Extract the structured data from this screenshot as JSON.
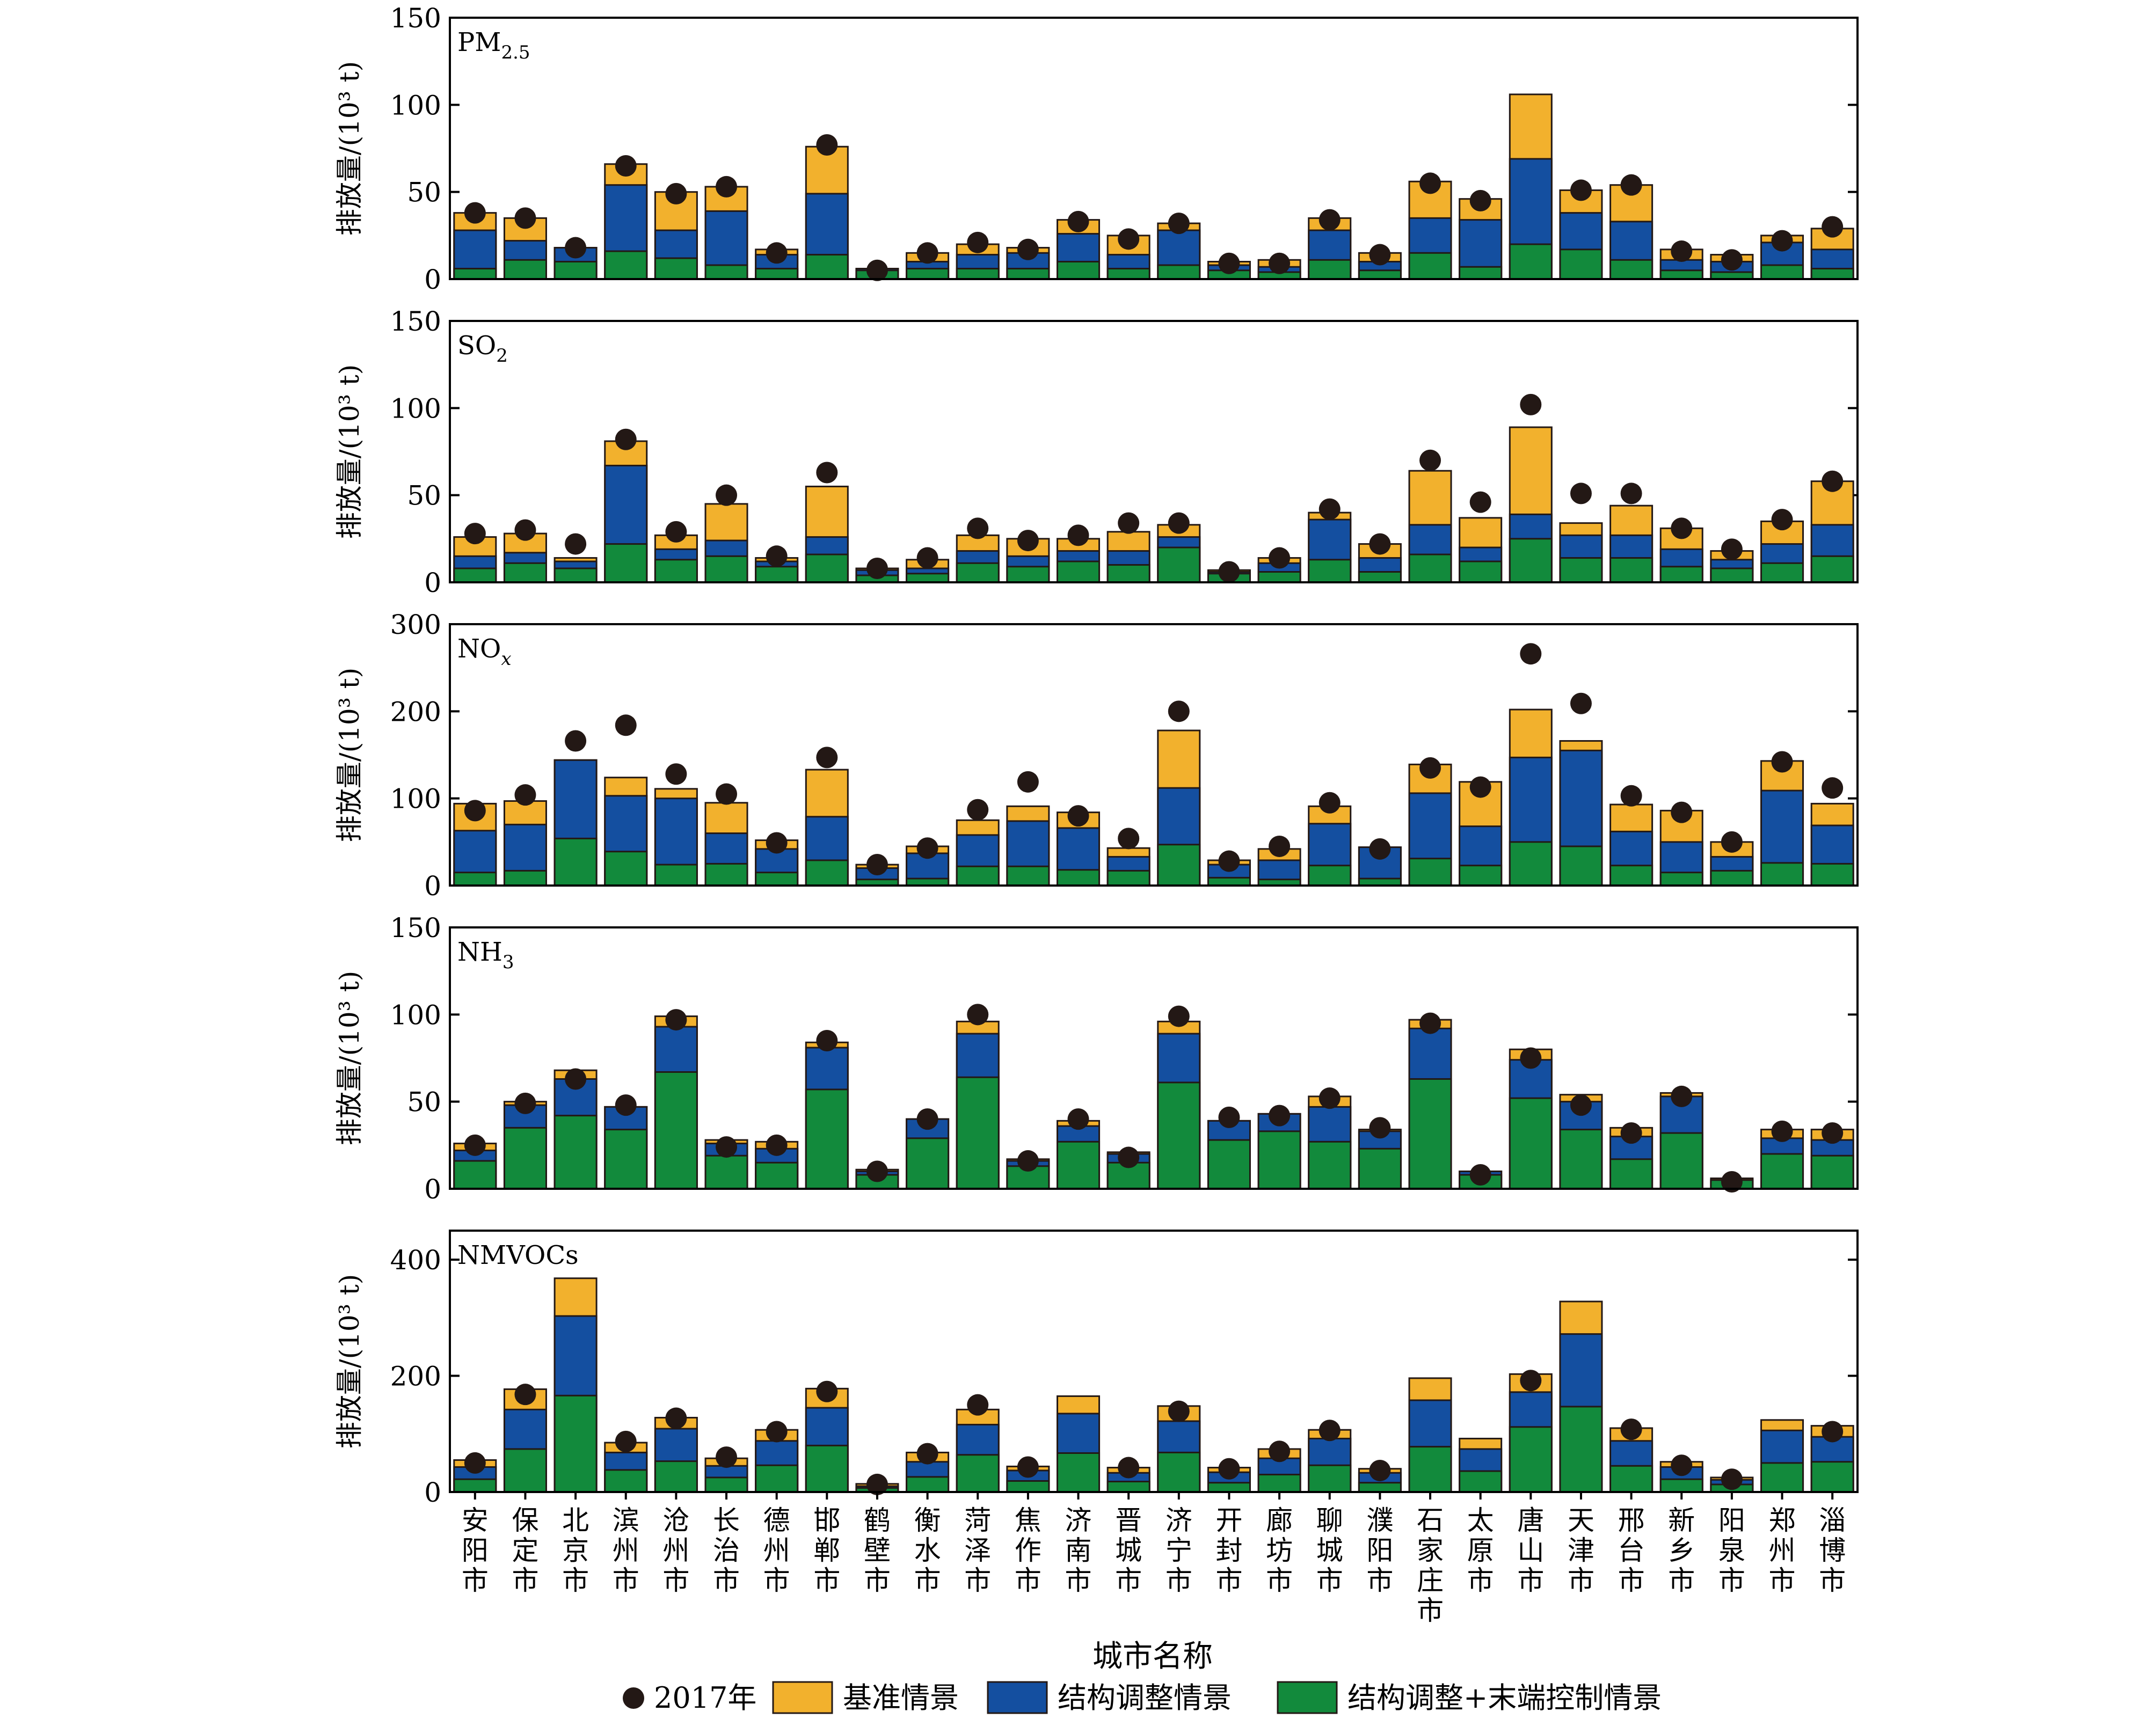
{
  "xlabel": "城市名称",
  "ylabel": "排放量/(10³ t)",
  "legend": {
    "placement": "bottom",
    "items": [
      {
        "key": "y2017",
        "label": "2017年",
        "shape": "circle",
        "color": "#231815"
      },
      {
        "key": "baseline",
        "label": "基准情景",
        "shape": "rect",
        "color": "#F2B12D"
      },
      {
        "key": "structural",
        "label": "结构调整情景",
        "shape": "rect",
        "color": "#144FA0"
      },
      {
        "key": "structural_end",
        "label": "结构调整+末端控制情景",
        "shape": "rect",
        "color": "#128A3C"
      }
    ]
  },
  "chart_data": {
    "type": "bar",
    "categories": [
      "安阳市",
      "保定市",
      "北京市",
      "滨州市",
      "沧州市",
      "长治市",
      "德州市",
      "邯郸市",
      "鹤壁市",
      "衡水市",
      "菏泽市",
      "焦作市",
      "济南市",
      "晋城市",
      "济宁市",
      "开封市",
      "廊坊市",
      "聊城市",
      "濮阳市",
      "石家庄市",
      "太原市",
      "唐山市",
      "天津市",
      "邢台市",
      "新乡市",
      "阳泉市",
      "郑州市",
      "淄博市"
    ],
    "panels": [
      {
        "title_main": "PM",
        "title_sub": "2.5",
        "title_italic": false,
        "ylim": [
          0,
          150
        ],
        "yticks": [
          0,
          50,
          100,
          150
        ],
        "series": {
          "baseline": [
            38,
            35,
            18,
            66,
            50,
            53,
            17,
            76,
            6,
            15,
            20,
            18,
            34,
            25,
            32,
            10,
            11,
            35,
            15,
            56,
            46,
            106,
            51,
            54,
            17,
            14,
            25,
            29
          ],
          "structural": [
            28,
            22,
            18,
            54,
            28,
            39,
            14,
            49,
            6,
            10,
            14,
            15,
            26,
            14,
            28,
            8,
            7,
            28,
            10,
            35,
            34,
            69,
            38,
            33,
            11,
            10,
            21,
            17
          ],
          "structural_end": [
            6,
            11,
            10,
            16,
            12,
            8,
            6,
            14,
            5,
            6,
            6,
            6,
            10,
            6,
            8,
            5,
            4,
            11,
            5,
            15,
            7,
            20,
            17,
            11,
            5,
            4,
            8,
            6
          ],
          "y2017": [
            38,
            35,
            18,
            65,
            49,
            53,
            15,
            77,
            5,
            15,
            21,
            17,
            33,
            23,
            32,
            9,
            9,
            34,
            14,
            55,
            45,
            null,
            51,
            54,
            16,
            11,
            22,
            30
          ]
        }
      },
      {
        "title_main": "SO",
        "title_sub": "2",
        "title_italic": false,
        "ylim": [
          0,
          150
        ],
        "yticks": [
          0,
          50,
          100,
          150
        ],
        "series": {
          "baseline": [
            26,
            28,
            14,
            81,
            27,
            45,
            14,
            55,
            8,
            13,
            27,
            25,
            25,
            29,
            33,
            7,
            14,
            40,
            22,
            64,
            37,
            89,
            34,
            44,
            31,
            18,
            35,
            58
          ],
          "structural": [
            15,
            17,
            12,
            67,
            19,
            24,
            12,
            26,
            7,
            8,
            18,
            15,
            18,
            18,
            26,
            6,
            11,
            36,
            14,
            33,
            20,
            39,
            27,
            27,
            19,
            13,
            22,
            33
          ],
          "structural_end": [
            8,
            11,
            8,
            22,
            13,
            15,
            9,
            16,
            4,
            5,
            11,
            9,
            12,
            10,
            20,
            5,
            6,
            13,
            6,
            16,
            12,
            25,
            14,
            14,
            9,
            8,
            11,
            15
          ],
          "y2017": [
            28,
            30,
            22,
            82,
            29,
            50,
            15,
            63,
            8,
            14,
            31,
            24,
            27,
            34,
            34,
            6,
            14,
            42,
            22,
            70,
            46,
            102,
            51,
            51,
            31,
            19,
            36,
            58
          ]
        }
      },
      {
        "title_main": "NO",
        "title_sub": "x",
        "title_italic": true,
        "ylim": [
          0,
          300
        ],
        "yticks": [
          0,
          100,
          200,
          300
        ],
        "series": {
          "baseline": [
            94,
            97,
            144,
            124,
            111,
            95,
            52,
            133,
            24,
            45,
            75,
            91,
            84,
            43,
            178,
            29,
            42,
            91,
            44,
            139,
            119,
            202,
            166,
            93,
            86,
            50,
            143,
            94
          ],
          "structural": [
            63,
            70,
            144,
            103,
            100,
            60,
            42,
            79,
            20,
            37,
            58,
            74,
            66,
            33,
            112,
            24,
            29,
            71,
            44,
            106,
            68,
            147,
            155,
            62,
            50,
            33,
            109,
            69
          ],
          "structural_end": [
            15,
            17,
            54,
            39,
            24,
            25,
            15,
            29,
            7,
            8,
            22,
            22,
            18,
            17,
            47,
            9,
            7,
            23,
            8,
            31,
            23,
            50,
            45,
            23,
            15,
            17,
            26,
            25
          ],
          "y2017": [
            86,
            104,
            166,
            184,
            128,
            105,
            49,
            147,
            24,
            43,
            87,
            119,
            80,
            54,
            200,
            28,
            45,
            95,
            42,
            135,
            113,
            266,
            209,
            103,
            84,
            50,
            142,
            112
          ]
        }
      },
      {
        "title_main": "NH",
        "title_sub": "3",
        "title_italic": false,
        "ylim": [
          0,
          150
        ],
        "yticks": [
          0,
          50,
          100,
          150
        ],
        "series": {
          "baseline": [
            26,
            50,
            68,
            47,
            99,
            28,
            27,
            84,
            11,
            40,
            96,
            17,
            39,
            21,
            96,
            39,
            43,
            53,
            34,
            97,
            10,
            80,
            54,
            35,
            55,
            6,
            34,
            34
          ],
          "structural": [
            22,
            48,
            63,
            47,
            93,
            26,
            23,
            81,
            10,
            40,
            89,
            16,
            36,
            20,
            89,
            39,
            43,
            47,
            33,
            92,
            10,
            74,
            50,
            30,
            53,
            5,
            29,
            28
          ],
          "structural_end": [
            16,
            35,
            42,
            34,
            67,
            19,
            15,
            57,
            8,
            29,
            64,
            13,
            27,
            15,
            61,
            28,
            33,
            27,
            23,
            63,
            8,
            52,
            34,
            17,
            32,
            5,
            20,
            19
          ],
          "y2017": [
            25,
            49,
            63,
            48,
            97,
            24,
            25,
            85,
            10,
            40,
            100,
            16,
            40,
            18,
            99,
            41,
            42,
            52,
            35,
            95,
            8,
            75,
            48,
            32,
            53,
            4,
            33,
            32
          ]
        }
      },
      {
        "title_main": "NMVOCs",
        "title_sub": "",
        "title_italic": false,
        "ylim": [
          0,
          450
        ],
        "yticks": [
          0,
          200,
          400
        ],
        "series": {
          "baseline": [
            55,
            177,
            368,
            85,
            128,
            58,
            107,
            178,
            14,
            68,
            142,
            44,
            165,
            42,
            148,
            42,
            74,
            107,
            40,
            196,
            92,
            203,
            328,
            110,
            52,
            25,
            124,
            114
          ],
          "structural": [
            43,
            142,
            303,
            68,
            109,
            45,
            88,
            145,
            10,
            52,
            116,
            37,
            135,
            33,
            122,
            34,
            58,
            92,
            33,
            158,
            74,
            172,
            272,
            88,
            43,
            21,
            106,
            95
          ],
          "structural_end": [
            22,
            74,
            166,
            38,
            53,
            25,
            46,
            80,
            7,
            26,
            64,
            19,
            67,
            18,
            68,
            16,
            30,
            46,
            16,
            78,
            36,
            112,
            147,
            45,
            22,
            13,
            50,
            52
          ],
          "y2017": [
            50,
            168,
            null,
            87,
            127,
            60,
            104,
            173,
            13,
            66,
            150,
            43,
            null,
            42,
            139,
            40,
            70,
            106,
            37,
            null,
            null,
            192,
            null,
            108,
            46,
            22,
            null,
            104
          ]
        }
      }
    ]
  }
}
